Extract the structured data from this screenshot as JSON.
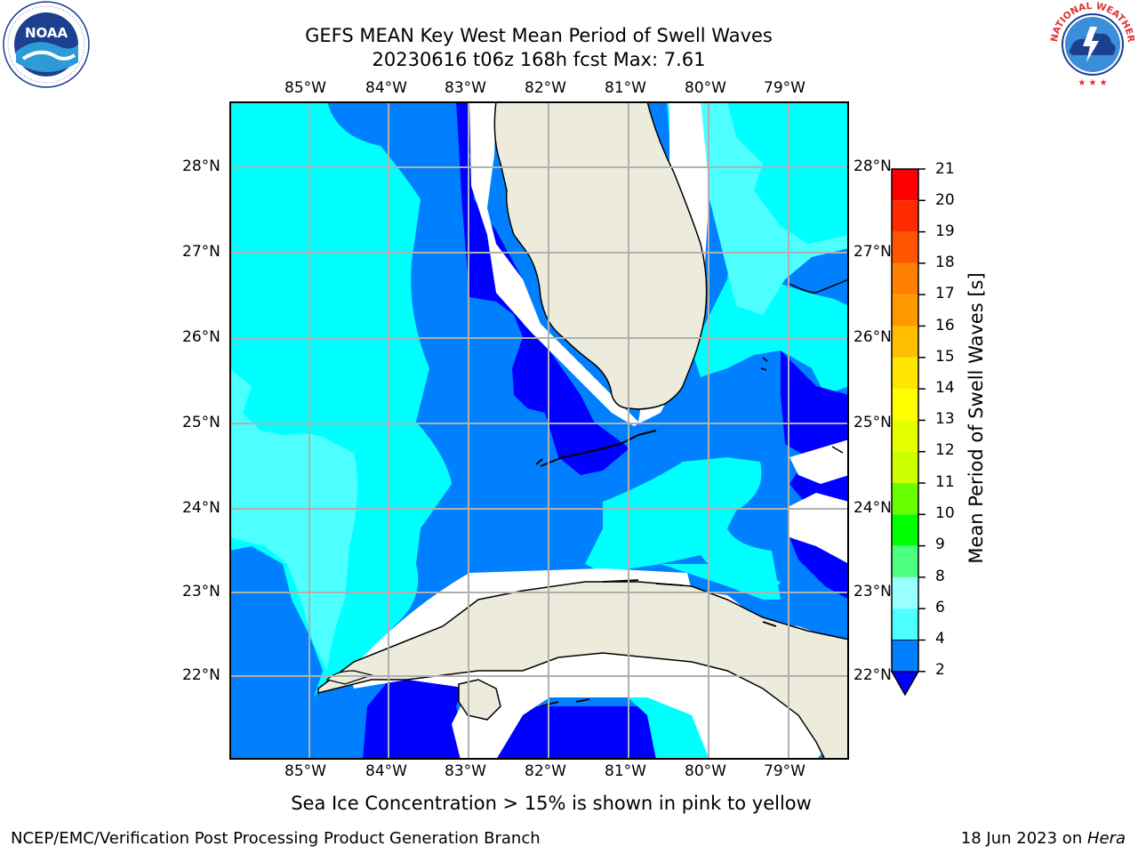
{
  "header": {
    "title_line1": "GEFS MEAN Key West Mean Period of Swell Waves",
    "title_line2": "20230616 t06z 168h fcst   Max: 7.61"
  },
  "logos": {
    "noaa_text": "NOAA",
    "noaa_ring_text": "NATIONAL OCEANIC AND ATMOSPHERIC ADMINISTRATION · U.S. DEPARTMENT OF COMMERCE",
    "nws_ring_text": "NATIONAL WEATHER SERVICE"
  },
  "map": {
    "lon_labels": [
      "85°W",
      "84°W",
      "83°W",
      "82°W",
      "81°W",
      "80°W",
      "79°W"
    ],
    "lat_labels": [
      "28°N",
      "27°N",
      "26°N",
      "25°N",
      "24°N",
      "23°N",
      "22°N"
    ]
  },
  "colorbar": {
    "label": "Mean Period of Swell Waves [s]",
    "ticks": [
      "21",
      "20",
      "19",
      "18",
      "17",
      "16",
      "15",
      "14",
      "13",
      "12",
      "11",
      "10",
      "9",
      "8",
      "6",
      "4",
      "2"
    ],
    "colors": {
      "c2": "#0080ff",
      "c4": "#00ffff",
      "c6": "#4dffff",
      "c7": "#99ffff",
      "c8": "#4dff80",
      "c9": "#00e600",
      "c10": "#00ff00",
      "c11": "#66ff00",
      "c12": "#ccff00",
      "c13": "#e6ff00",
      "c14": "#ffff00",
      "c15": "#ffe600",
      "c16": "#ffbf00",
      "c17": "#ff9900",
      "c18": "#ff7f00",
      "c19": "#ff5500",
      "c20": "#ff2b00",
      "c21": "#ff0000",
      "under": "#0000ff"
    }
  },
  "note": "Sea Ice Concentration > 15% is shown in pink to yellow",
  "footer": {
    "left": "NCEP/EMC/Verification Post Processing Product Generation Branch",
    "right_date": "18 Jun 2023 on ",
    "right_machine": "Hera"
  }
}
